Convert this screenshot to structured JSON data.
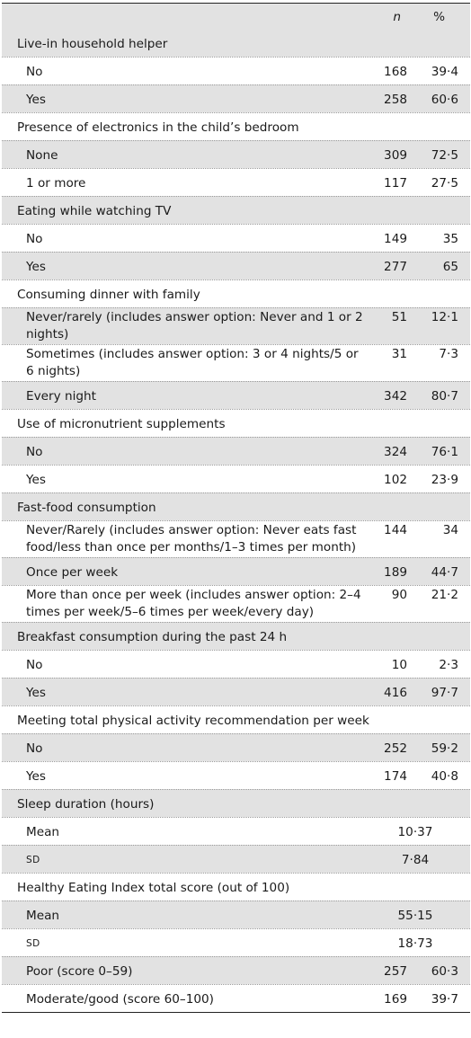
{
  "header": {
    "n": "n",
    "pct": "%"
  },
  "rows": [
    {
      "label": "Live-in household helper",
      "kind": "cat"
    },
    {
      "label": "No",
      "kind": "sub",
      "n": "168",
      "pct": "39·4"
    },
    {
      "label": "Yes",
      "kind": "sub",
      "n": "258",
      "pct": "60·6"
    },
    {
      "label": "Presence of electronics in the child’s bedroom",
      "kind": "cat"
    },
    {
      "label": "None",
      "kind": "sub",
      "n": "309",
      "pct": "72·5"
    },
    {
      "label": "1 or more",
      "kind": "sub",
      "n": "117",
      "pct": "27·5"
    },
    {
      "label": "Eating while watching TV",
      "kind": "cat"
    },
    {
      "label": "No",
      "kind": "sub",
      "n": "149",
      "pct": "35"
    },
    {
      "label": "Yes",
      "kind": "sub",
      "n": "277",
      "pct": "65"
    },
    {
      "label": "Consuming dinner with family",
      "kind": "cat"
    },
    {
      "label": "Never/rarely (includes answer option: Never and 1 or 2 nights)",
      "kind": "sub",
      "n": "51",
      "pct": "12·1",
      "tall": true
    },
    {
      "label": "Sometimes (includes answer option: 3 or 4 nights/5 or 6 nights)",
      "kind": "sub",
      "n": "31",
      "pct": "7·3",
      "tall": true
    },
    {
      "label": "Every night",
      "kind": "sub",
      "n": "342",
      "pct": "80·7"
    },
    {
      "label": "Use of micronutrient supplements",
      "kind": "cat"
    },
    {
      "label": "No",
      "kind": "sub",
      "n": "324",
      "pct": "76·1"
    },
    {
      "label": "Yes",
      "kind": "sub",
      "n": "102",
      "pct": "23·9"
    },
    {
      "label": "Fast-food consumption",
      "kind": "cat"
    },
    {
      "label": "Never/Rarely (includes answer option: Never eats fast food/less than once per months/1–3 times per month)",
      "kind": "sub",
      "n": "144",
      "pct": "34",
      "tall": true
    },
    {
      "label": "Once per week",
      "kind": "sub",
      "n": "189",
      "pct": "44·7"
    },
    {
      "label": "More than once per week (includes answer option: 2–4 times per week/5–6 times per week/every day)",
      "kind": "sub",
      "n": "90",
      "pct": "21·2",
      "tall": true
    },
    {
      "label": "Breakfast consumption during the past 24 h",
      "kind": "cat"
    },
    {
      "label": "No",
      "kind": "sub",
      "n": "10",
      "pct": "2·3"
    },
    {
      "label": "Yes",
      "kind": "sub",
      "n": "416",
      "pct": "97·7"
    },
    {
      "label": "Meeting total physical activity recommendation per week",
      "kind": "cat"
    },
    {
      "label": "No",
      "kind": "sub",
      "n": "252",
      "pct": "59·2"
    },
    {
      "label": "Yes",
      "kind": "sub",
      "n": "174",
      "pct": "40·8"
    },
    {
      "label": "Sleep duration (hours)",
      "kind": "cat"
    },
    {
      "label": "Mean",
      "kind": "sub",
      "combined": "10·37"
    },
    {
      "label": "SD",
      "kind": "sub",
      "combined": "7·84",
      "smallcaps": true
    },
    {
      "label": "Healthy Eating Index total score (out of 100)",
      "kind": "cat"
    },
    {
      "label": "Mean",
      "kind": "sub",
      "combined": "55·15"
    },
    {
      "label": "SD",
      "kind": "sub",
      "combined": "18·73",
      "smallcaps": true
    },
    {
      "label": "Poor (score 0–59)",
      "kind": "sub",
      "n": "257",
      "pct": "60·3"
    },
    {
      "label": "Moderate/good (score 60–100)",
      "kind": "sub",
      "n": "169",
      "pct": "39·7"
    }
  ]
}
